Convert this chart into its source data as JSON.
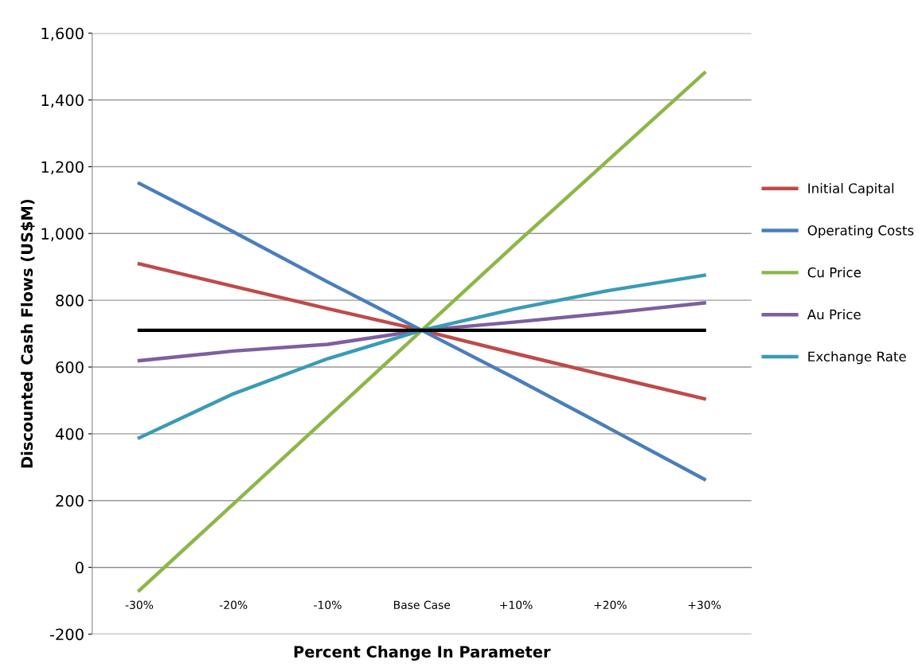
{
  "chart_data": {
    "type": "line",
    "xlabel": "Percent Change In Parameter",
    "ylabel": "Discounted Cash Flows (US$M)",
    "categories": [
      "-30%",
      "-20%",
      "-10%",
      "Base Case",
      "+10%",
      "+20%",
      "+30%"
    ],
    "series": [
      {
        "name": "Initial Capital",
        "color": "#be4b48",
        "values": [
          909,
          842,
          775,
          710,
          640,
          572,
          505
        ]
      },
      {
        "name": "Operating Costs",
        "color": "#4a7ebb",
        "values": [
          1150,
          1005,
          855,
          710,
          565,
          415,
          264
        ]
      },
      {
        "name": "Cu Price",
        "color": "#8cb748",
        "values": [
          -69,
          190,
          450,
          710,
          970,
          1225,
          1481
        ]
      },
      {
        "name": "Au Price",
        "color": "#7d5fa0",
        "values": [
          619,
          648,
          668,
          710,
          735,
          762,
          792
        ]
      },
      {
        "name": "Exchange Rate",
        "color": "#3a9bb5",
        "values": [
          388,
          520,
          625,
          710,
          775,
          830,
          875
        ]
      },
      {
        "color": "#000000",
        "values": [
          710,
          710,
          710,
          710,
          710,
          710,
          710
        ]
      }
    ],
    "ylim": [
      -200,
      1600
    ],
    "yticks": [
      {
        "value": -200,
        "label": "-200"
      },
      0,
      {
        "value": 200,
        "label": "200"
      },
      {
        "value": 400,
        "label": "400"
      },
      {
        "value": 600,
        "label": "600"
      },
      {
        "value": 800,
        "label": "800"
      },
      {
        "value": 1000,
        "label": "1,000"
      },
      {
        "value": 1200,
        "label": "1,200"
      },
      {
        "value": 1400,
        "label": "1,400"
      },
      {
        "value": 1600,
        "label": "1,600"
      }
    ],
    "grid": "y",
    "legend": "right",
    "marker": "none",
    "line_style": "solid"
  }
}
